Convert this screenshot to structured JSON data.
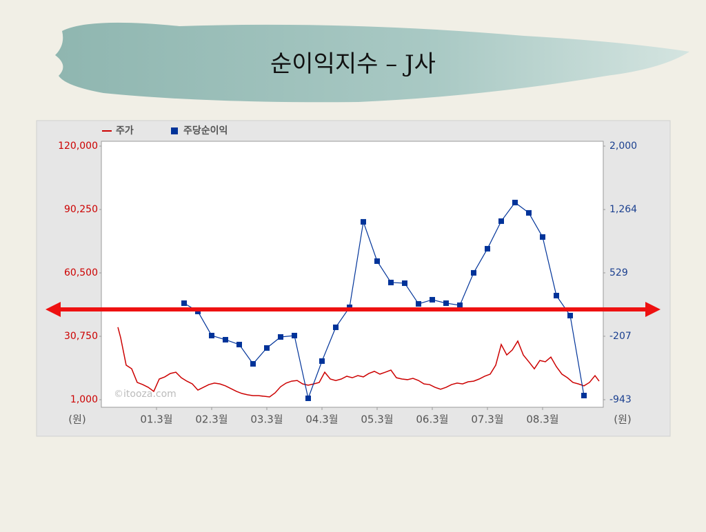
{
  "chart_data": {
    "type": "line",
    "title": "순이익지수 – J사",
    "watermark": "©itooza.com",
    "y_unit_label": "(원)",
    "y2_unit_label": "(원)",
    "xlim": [
      0,
      36.4
    ],
    "xticks": [
      {
        "value": 4,
        "label": "01.3월"
      },
      {
        "value": 8,
        "label": "02.3월"
      },
      {
        "value": 12,
        "label": "03.3월"
      },
      {
        "value": 16,
        "label": "04.3월"
      },
      {
        "value": 20,
        "label": "05.3월"
      },
      {
        "value": 24,
        "label": "06.3월"
      },
      {
        "value": 28,
        "label": "07.3월"
      },
      {
        "value": 32,
        "label": "08.3월"
      }
    ],
    "ylim": [
      1000,
      120000
    ],
    "yticks": [
      {
        "value": 1000,
        "label": "1,000"
      },
      {
        "value": 30750,
        "label": "30,750"
      },
      {
        "value": 60500,
        "label": "60,500"
      },
      {
        "value": 90250,
        "label": "90,250"
      },
      {
        "value": 120000,
        "label": "120,000"
      }
    ],
    "y2lim": [
      -943,
      2000
    ],
    "y2ticks": [
      -943,
      -207,
      529,
      {
        "value": 1264,
        "label": "1,264"
      },
      {
        "value": 2000,
        "label": "2,000"
      }
    ],
    "series": [
      {
        "name": "주가",
        "color": "#cc0000",
        "x": [
          1.2,
          1.4,
          1.8,
          2.2,
          2.6,
          3.0,
          3.4,
          3.8,
          4.2,
          4.6,
          5.0,
          5.4,
          5.8,
          6.2,
          6.6,
          7.0,
          7.4,
          7.8,
          8.2,
          8.6,
          9.0,
          9.4,
          9.8,
          10.2,
          10.6,
          11.0,
          11.4,
          11.8,
          12.2,
          12.6,
          13.0,
          13.4,
          13.8,
          14.2,
          14.6,
          15.0,
          15.4,
          15.8,
          16.2,
          16.6,
          17.0,
          17.4,
          17.8,
          18.2,
          18.6,
          19.0,
          19.4,
          19.8,
          20.2,
          20.6,
          21.0,
          21.4,
          21.8,
          22.2,
          22.6,
          23.0,
          23.4,
          23.8,
          24.2,
          24.6,
          25.0,
          25.4,
          25.8,
          26.2,
          26.6,
          27.0,
          27.4,
          27.8,
          28.2,
          28.6,
          29.0,
          29.4,
          29.8,
          30.2,
          30.6,
          31.0,
          31.4,
          31.8,
          32.2,
          32.6,
          33.0,
          33.4,
          33.8,
          34.2,
          34.6,
          35.0,
          35.4,
          35.8,
          36.1
        ],
        "values": [
          35000,
          30100,
          17200,
          15500,
          9100,
          8100,
          6800,
          4900,
          10700,
          11700,
          13300,
          13900,
          11300,
          9700,
          8400,
          5500,
          6800,
          8100,
          8800,
          8400,
          7500,
          6200,
          4900,
          3900,
          3300,
          2900,
          2900,
          2600,
          2300,
          4200,
          7100,
          8800,
          9700,
          10000,
          8400,
          7800,
          8400,
          9100,
          13900,
          10700,
          10000,
          10700,
          12000,
          11300,
          12300,
          11700,
          13300,
          14300,
          13000,
          13900,
          14900,
          11300,
          10700,
          10400,
          11000,
          10000,
          8400,
          8100,
          6800,
          5900,
          6800,
          8100,
          8800,
          8400,
          9400,
          9700,
          10700,
          12000,
          13000,
          17200,
          26900,
          22000,
          24300,
          28500,
          22000,
          18800,
          15500,
          19400,
          18800,
          21000,
          16500,
          13000,
          11300,
          9100,
          8400,
          7500,
          9100,
          12300,
          9700
        ]
      },
      {
        "name": "주당순이익",
        "color": "#003399",
        "axis": "y2",
        "x": [
          6,
          7,
          8,
          9,
          10,
          11,
          12,
          13,
          14,
          15,
          16,
          17,
          18,
          19,
          20,
          21,
          22,
          23,
          24,
          25,
          26,
          27,
          28,
          29,
          30,
          31,
          32,
          33,
          34,
          35
        ],
        "values": [
          177,
          81,
          -199,
          -247,
          -303,
          -527,
          -343,
          -215,
          -199,
          -927,
          -495,
          -103,
          129,
          1121,
          665,
          417,
          409,
          169,
          217,
          177,
          153,
          529,
          809,
          1129,
          1345,
          1225,
          945,
          265,
          33,
          -895
        ]
      }
    ]
  }
}
